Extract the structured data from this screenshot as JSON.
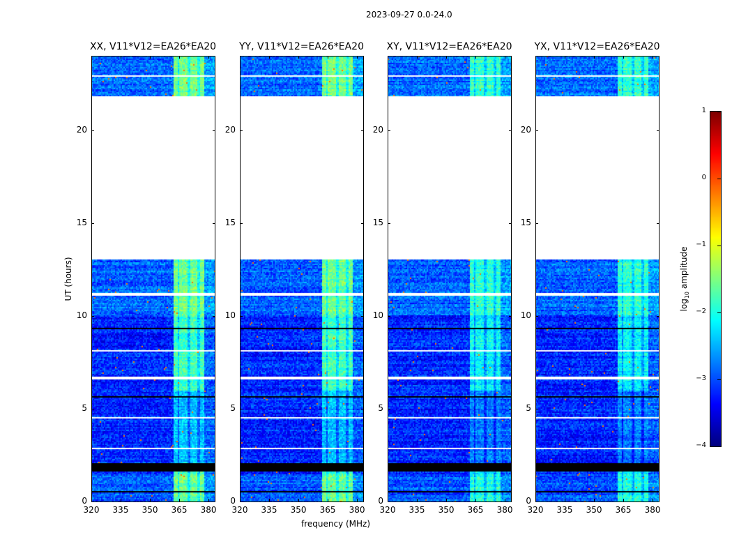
{
  "chart_data": {
    "type": "heatmap",
    "suptitle": "2023-09-27 0.0-24.0",
    "xlabel": "frequency (MHz)",
    "ylabel": "UT (hours)",
    "xlim": [
      320,
      383.2
    ],
    "ylim": [
      0,
      24
    ],
    "xticks": [
      "320",
      "335",
      "350",
      "365",
      "380"
    ],
    "yticks": [
      "0",
      "5",
      "10",
      "15",
      "20"
    ],
    "panels": [
      {
        "title": "XX, V11*V12=EA26*EA20"
      },
      {
        "title": "YY, V11*V12=EA26*EA20"
      },
      {
        "title": "XY, V11*V12=EA26*EA20"
      },
      {
        "title": "YX, V11*V12=EA26*EA20"
      }
    ],
    "colorbar": {
      "label": "log10 amplitude",
      "label_main": "log",
      "label_sub": "10",
      "label_rest": " amplitude",
      "colormap": "jet",
      "range": [
        -4,
        1
      ],
      "ticks": [
        "1",
        "0",
        "−1",
        "−2",
        "−3",
        "−4"
      ]
    },
    "flagged_blank_hours": [
      [
        13.0,
        21.8
      ],
      [
        6.6,
        6.75
      ],
      [
        11.1,
        11.25
      ],
      [
        2.85,
        2.9
      ],
      [
        3.4,
        3.45
      ],
      [
        4.5,
        4.55
      ],
      [
        8.1,
        8.15
      ],
      [
        22.9,
        22.95
      ]
    ],
    "dropout_black_hours": [
      [
        1.6,
        2.1
      ],
      [
        0.5,
        0.6
      ],
      [
        5.2,
        5.25
      ],
      [
        5.6,
        5.65
      ],
      [
        7.3,
        7.35
      ],
      [
        9.3,
        9.35
      ],
      [
        10.3,
        10.35
      ],
      [
        21.8,
        21.85
      ],
      [
        23.3,
        23.35
      ]
    ],
    "rfi_band_mhz": [
      362,
      378
    ],
    "rfi_band_level": -1.8,
    "background_level": -3.2
  }
}
